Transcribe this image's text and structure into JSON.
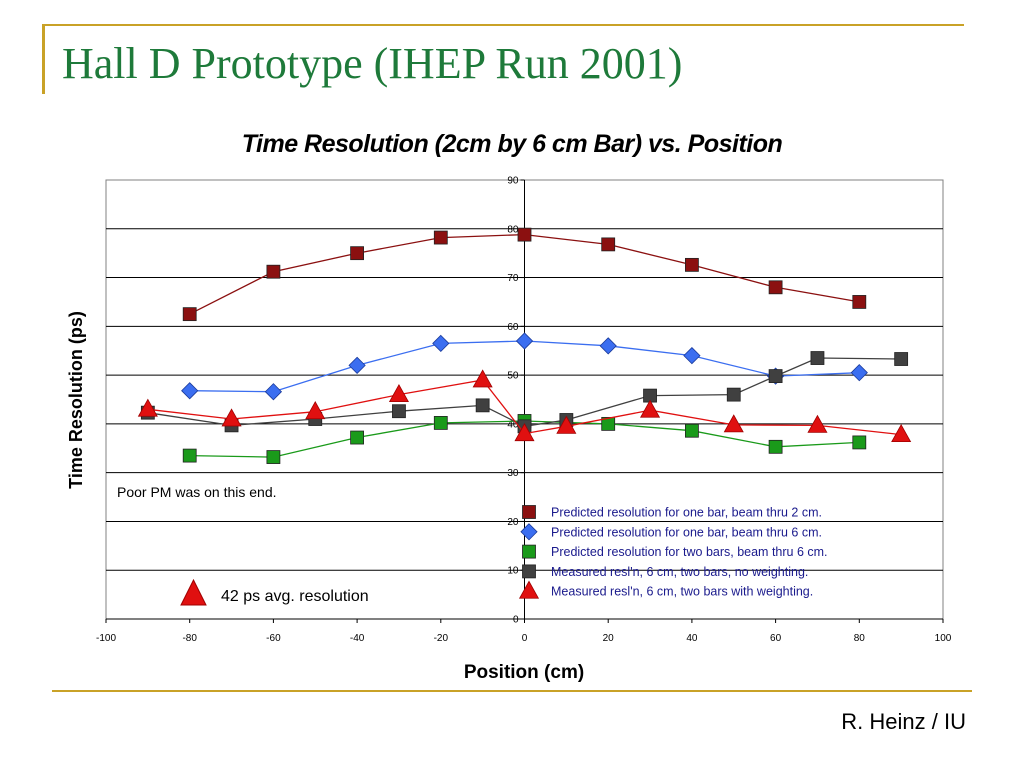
{
  "slide": {
    "title": "Hall D Prototype (IHEP Run 2001)",
    "author": "R. Heinz / IU"
  },
  "chart_data": {
    "type": "scatter",
    "title": "Time Resolution (2cm by 6 cm Bar) vs. Position",
    "xlabel": "Position (cm)",
    "ylabel": "Time Resolution (ps)",
    "xlim": [
      -100,
      100
    ],
    "ylim": [
      0,
      90
    ],
    "x_ticks": [
      -100,
      -80,
      -60,
      -40,
      -20,
      0,
      20,
      40,
      60,
      80,
      100
    ],
    "y_ticks": [
      0,
      10,
      20,
      30,
      40,
      50,
      60,
      70,
      80,
      90
    ],
    "grid": "horizontal",
    "legend_placement": "bottom-center",
    "annotations": [
      "Poor PM was on this end.",
      "42 ps avg. resolution"
    ],
    "series": [
      {
        "name": "Predicted resolution for one bar, beam thru 2 cm.",
        "marker": "square",
        "color": "#8b1010",
        "x": [
          -80,
          -60,
          -40,
          -20,
          0,
          20,
          40,
          60,
          80
        ],
        "y": [
          62.5,
          71.2,
          75,
          78.2,
          78.8,
          76.8,
          72.6,
          68,
          65
        ]
      },
      {
        "name": "Predicted resolution for one bar, beam thru 6 cm.",
        "marker": "diamond",
        "color": "#3b6ef0",
        "x": [
          -80,
          -60,
          -40,
          -20,
          0,
          20,
          40,
          60,
          80
        ],
        "y": [
          46.8,
          46.6,
          52,
          56.5,
          57,
          56,
          54,
          49.8,
          50.5
        ]
      },
      {
        "name": "Predicted resolution for two bars, beam thru 6 cm.",
        "marker": "square",
        "color": "#1a9a1a",
        "x": [
          -80,
          -60,
          -40,
          -20,
          0,
          20,
          40,
          60,
          80
        ],
        "y": [
          33.5,
          33.2,
          37.2,
          40.2,
          40.6,
          40,
          38.6,
          35.3,
          36.2
        ]
      },
      {
        "name": "Measured resl'n, 6 cm, two bars, no weighting.",
        "marker": "square",
        "color": "#404040",
        "x": [
          -90,
          -70,
          -50,
          -30,
          -10,
          0,
          10,
          30,
          50,
          60,
          70,
          90
        ],
        "y": [
          42.3,
          39.7,
          41,
          42.6,
          43.8,
          39.5,
          40.8,
          45.8,
          46,
          49.8,
          53.5,
          53.3
        ]
      },
      {
        "name": "Measured resl'n, 6 cm, two bars with weighting.",
        "marker": "triangle",
        "color": "#e01010",
        "x": [
          -90,
          -70,
          -50,
          -30,
          -10,
          0,
          10,
          30,
          50,
          70,
          90
        ],
        "y": [
          43,
          41,
          42.5,
          46,
          49,
          38,
          39.5,
          42.8,
          39.8,
          39.7,
          37.8
        ]
      }
    ]
  }
}
